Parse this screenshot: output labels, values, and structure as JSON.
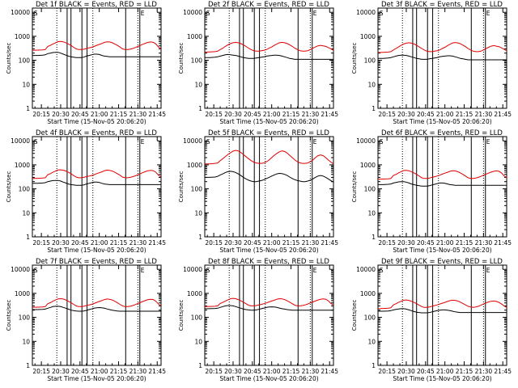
{
  "chart_data": {
    "type": "line",
    "layout": "3x3 grid",
    "ylabel": "Counts/sec",
    "xlabel": "Start Time (15-Nov-05 20:06:20)",
    "x_tick_labels": [
      "20:15",
      "20:30",
      "20:45",
      "21:00",
      "21:15",
      "21:30",
      "21:45"
    ],
    "x_tick_minutes": [
      15,
      30,
      45,
      60,
      75,
      90,
      105
    ],
    "x_range_minutes": [
      8,
      108
    ],
    "y_scale": "log",
    "ylim": [
      1,
      15000
    ],
    "y_tick_labels": [
      "1",
      "10",
      "100",
      "1000",
      "10000"
    ],
    "y_tick_values": [
      1,
      10,
      100,
      1000,
      10000
    ],
    "series_colors": {
      "events": "#000000",
      "lld": "#e00000"
    },
    "markers": {
      "dotted_lines_minutes": [
        27,
        55,
        90
      ],
      "solid_lines_minutes": [
        35,
        38,
        46.5,
        50.5,
        80.5,
        91.5
      ],
      "edge_labels": [
        "S",
        "E"
      ],
      "edge_label_minutes": [
        8.5,
        91.5
      ]
    },
    "time_minutes": [
      8,
      12,
      16,
      18,
      20,
      22,
      24,
      26,
      28,
      30,
      32,
      34,
      36,
      38,
      40,
      42,
      44,
      46,
      48,
      50,
      52,
      54,
      56,
      58,
      60,
      62,
      64,
      66,
      68,
      70,
      72,
      74,
      76,
      78,
      80,
      82,
      84,
      86,
      88,
      90,
      92,
      94,
      96,
      98,
      100,
      102,
      104,
      106,
      108
    ],
    "panels": [
      {
        "title": "Det 1f  BLACK = Events, RED = LLD",
        "events": [
          160,
          160,
          165,
          170,
          190,
          200,
          210,
          215,
          215,
          200,
          180,
          165,
          150,
          140,
          135,
          130,
          130,
          130,
          135,
          150,
          160,
          170,
          180,
          180,
          175,
          160,
          150,
          145,
          140,
          140,
          140,
          140,
          140,
          140,
          140,
          140,
          140,
          140,
          140,
          140,
          140,
          140,
          140,
          140,
          140,
          140,
          140,
          140,
          140
        ],
        "lld": [
          260,
          265,
          270,
          280,
          380,
          420,
          480,
          540,
          600,
          610,
          590,
          540,
          480,
          420,
          350,
          300,
          280,
          280,
          290,
          310,
          330,
          350,
          380,
          420,
          460,
          500,
          560,
          590,
          580,
          540,
          480,
          420,
          360,
          300,
          280,
          280,
          290,
          310,
          340,
          380,
          420,
          470,
          520,
          560,
          580,
          560,
          480,
          360,
          300
        ]
      },
      {
        "title": "Det 2f  BLACK = Events, RED = LLD",
        "events": [
          130,
          130,
          135,
          140,
          150,
          160,
          170,
          175,
          170,
          165,
          160,
          150,
          140,
          130,
          125,
          120,
          120,
          120,
          125,
          130,
          135,
          140,
          150,
          155,
          160,
          165,
          165,
          160,
          150,
          140,
          130,
          120,
          115,
          110,
          110,
          110,
          110,
          110,
          110,
          110,
          110,
          110,
          110,
          110,
          110,
          110,
          110,
          110,
          110
        ],
        "lld": [
          220,
          225,
          230,
          240,
          280,
          320,
          380,
          440,
          500,
          540,
          560,
          540,
          500,
          440,
          380,
          320,
          280,
          250,
          240,
          240,
          250,
          260,
          280,
          320,
          360,
          420,
          480,
          540,
          560,
          540,
          500,
          440,
          380,
          320,
          280,
          250,
          240,
          240,
          250,
          280,
          320,
          360,
          400,
          420,
          400,
          380,
          340,
          300,
          260
        ]
      },
      {
        "title": "Det 3f  BLACK = Events, RED = LLD",
        "events": [
          120,
          120,
          125,
          130,
          140,
          150,
          160,
          165,
          165,
          160,
          150,
          140,
          130,
          120,
          115,
          110,
          110,
          110,
          115,
          120,
          125,
          130,
          140,
          145,
          150,
          155,
          155,
          150,
          140,
          130,
          120,
          115,
          110,
          105,
          105,
          105,
          105,
          105,
          105,
          105,
          105,
          105,
          105,
          105,
          105,
          105,
          105,
          105,
          105
        ],
        "lld": [
          210,
          215,
          220,
          230,
          270,
          310,
          360,
          420,
          480,
          520,
          540,
          520,
          480,
          420,
          360,
          310,
          270,
          240,
          230,
          230,
          240,
          250,
          270,
          310,
          350,
          410,
          470,
          530,
          550,
          530,
          490,
          430,
          370,
          310,
          270,
          240,
          230,
          230,
          240,
          270,
          310,
          350,
          390,
          410,
          390,
          370,
          330,
          290,
          250
        ]
      },
      {
        "title": "Det 4f  BLACK = Events, RED = LLD",
        "events": [
          170,
          170,
          175,
          180,
          200,
          210,
          220,
          225,
          225,
          210,
          190,
          175,
          160,
          150,
          145,
          140,
          140,
          140,
          145,
          160,
          170,
          180,
          190,
          190,
          185,
          170,
          160,
          155,
          150,
          150,
          150,
          150,
          150,
          150,
          150,
          150,
          150,
          150,
          150,
          150,
          150,
          150,
          150,
          150,
          150,
          150,
          150,
          150,
          150
        ],
        "lld": [
          270,
          275,
          280,
          290,
          390,
          430,
          490,
          550,
          610,
          620,
          600,
          550,
          490,
          430,
          360,
          310,
          290,
          290,
          300,
          320,
          340,
          360,
          390,
          430,
          470,
          510,
          570,
          600,
          590,
          550,
          490,
          430,
          370,
          310,
          290,
          290,
          300,
          320,
          350,
          390,
          430,
          480,
          530,
          570,
          590,
          570,
          490,
          370,
          310
        ]
      },
      {
        "title": "Det 5f  BLACK = Events, RED = LLD",
        "events": [
          300,
          300,
          310,
          330,
          380,
          420,
          480,
          520,
          540,
          520,
          480,
          420,
          360,
          300,
          260,
          230,
          210,
          200,
          200,
          210,
          220,
          240,
          270,
          300,
          340,
          380,
          420,
          440,
          430,
          400,
          360,
          310,
          270,
          240,
          220,
          210,
          200,
          200,
          210,
          230,
          260,
          300,
          340,
          360,
          340,
          300,
          260,
          220,
          190
        ],
        "lld": [
          1100,
          1100,
          1150,
          1200,
          1500,
          1800,
          2200,
          2700,
          3200,
          3700,
          4000,
          3800,
          3300,
          2700,
          2200,
          1800,
          1500,
          1300,
          1200,
          1150,
          1150,
          1200,
          1350,
          1600,
          2000,
          2500,
          3000,
          3500,
          3800,
          3600,
          3100,
          2500,
          2000,
          1600,
          1350,
          1200,
          1150,
          1150,
          1200,
          1350,
          1600,
          2000,
          2400,
          2600,
          2400,
          2000,
          1600,
          1300,
          1100
        ]
      },
      {
        "title": "Det 6f  BLACK = Events, RED = LLD",
        "events": [
          150,
          150,
          155,
          160,
          175,
          185,
          195,
          200,
          200,
          190,
          175,
          160,
          150,
          140,
          135,
          130,
          130,
          130,
          135,
          145,
          155,
          165,
          175,
          175,
          170,
          160,
          150,
          145,
          140,
          140,
          140,
          140,
          140,
          140,
          140,
          140,
          140,
          140,
          140,
          140,
          140,
          140,
          140,
          140,
          140,
          140,
          140,
          140,
          140
        ],
        "lld": [
          250,
          255,
          260,
          270,
          360,
          400,
          460,
          520,
          580,
          590,
          570,
          520,
          460,
          400,
          340,
          290,
          270,
          270,
          280,
          300,
          320,
          340,
          370,
          410,
          450,
          490,
          540,
          570,
          560,
          520,
          460,
          400,
          340,
          290,
          270,
          270,
          280,
          300,
          330,
          370,
          410,
          450,
          500,
          540,
          560,
          540,
          460,
          350,
          290
        ]
      },
      {
        "title": "Det 7f  BLACK = Events, RED = LLD",
        "events": [
          210,
          210,
          215,
          220,
          240,
          260,
          280,
          290,
          290,
          280,
          260,
          240,
          220,
          200,
          190,
          185,
          180,
          180,
          185,
          195,
          210,
          225,
          240,
          250,
          255,
          250,
          240,
          225,
          210,
          200,
          190,
          185,
          180,
          180,
          180,
          180,
          180,
          180,
          180,
          180,
          180,
          180,
          180,
          180,
          180,
          180,
          180,
          180,
          180
        ],
        "lld": [
          260,
          265,
          270,
          280,
          370,
          410,
          470,
          530,
          590,
          600,
          580,
          530,
          470,
          410,
          350,
          300,
          280,
          280,
          290,
          310,
          330,
          350,
          380,
          420,
          460,
          500,
          550,
          580,
          570,
          530,
          470,
          410,
          350,
          300,
          280,
          280,
          290,
          310,
          340,
          380,
          420,
          460,
          510,
          550,
          570,
          550,
          470,
          360,
          300
        ]
      },
      {
        "title": "Det 8f  BLACK = Events, RED = LLD",
        "events": [
          230,
          230,
          235,
          240,
          260,
          280,
          300,
          310,
          310,
          300,
          280,
          260,
          240,
          220,
          210,
          205,
          200,
          200,
          205,
          215,
          230,
          245,
          260,
          270,
          275,
          270,
          260,
          245,
          230,
          220,
          210,
          205,
          200,
          200,
          200,
          200,
          200,
          200,
          200,
          200,
          200,
          200,
          200,
          200,
          200,
          200,
          200,
          200,
          200
        ],
        "lld": [
          280,
          285,
          290,
          300,
          380,
          420,
          480,
          540,
          600,
          620,
          600,
          550,
          490,
          430,
          370,
          320,
          300,
          300,
          310,
          330,
          350,
          370,
          400,
          440,
          480,
          520,
          570,
          600,
          590,
          550,
          490,
          430,
          370,
          320,
          300,
          300,
          310,
          330,
          360,
          400,
          440,
          480,
          530,
          570,
          590,
          570,
          490,
          380,
          320
        ]
      },
      {
        "title": "Det 9f  BLACK = Events, RED = LLD",
        "events": [
          180,
          180,
          185,
          190,
          205,
          215,
          225,
          230,
          230,
          220,
          205,
          190,
          175,
          165,
          160,
          155,
          155,
          155,
          160,
          170,
          180,
          190,
          200,
          205,
          205,
          200,
          190,
          180,
          170,
          165,
          160,
          160,
          160,
          160,
          160,
          160,
          160,
          160,
          160,
          160,
          160,
          160,
          160,
          160,
          160,
          160,
          160,
          160,
          160
        ],
        "lld": [
          230,
          235,
          240,
          250,
          330,
          370,
          420,
          470,
          520,
          530,
          510,
          470,
          420,
          370,
          320,
          280,
          260,
          260,
          270,
          290,
          310,
          330,
          360,
          390,
          420,
          460,
          500,
          520,
          510,
          480,
          430,
          380,
          330,
          290,
          270,
          260,
          270,
          290,
          320,
          360,
          400,
          440,
          470,
          480,
          460,
          420,
          360,
          300,
          260
        ]
      }
    ]
  }
}
